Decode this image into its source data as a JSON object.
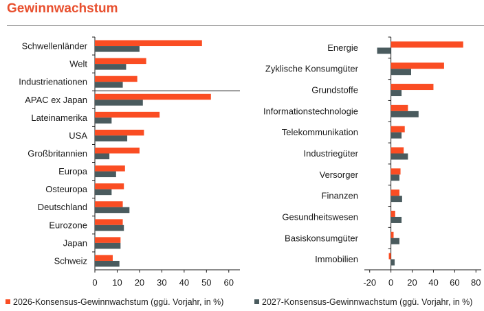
{
  "title": "Gewinnwachstum",
  "colors": {
    "series2026": "#fa4d23",
    "series2027": "#4a5b5e",
    "title": "#e8502f",
    "axis": "#1a1a1a"
  },
  "legend": {
    "series2026": "2026-Konsensus-Gewinnwachstum (ggü. Vorjahr, in %)",
    "series2027": "2027-Konsensus-Gewinnwachstum (ggü. Vorjahr, in %)"
  },
  "chart_data": [
    {
      "type": "bar",
      "orientation": "horizontal",
      "categories": [
        "Schwellenländer",
        "Welt",
        "Industrienationen",
        "APAC ex Japan",
        "Lateinamerika",
        "USA",
        "Großbritannien",
        "Europa",
        "Osteuropa",
        "Deutschland",
        "Eurozone",
        "Japan",
        "Schweiz"
      ],
      "series": [
        {
          "name": "2026-Konsensus-Gewinnwachstum (ggü. Vorjahr, in %)",
          "values": [
            48,
            23,
            19,
            52,
            29,
            22,
            20,
            13.5,
            13,
            12.5,
            12.5,
            11.5,
            8
          ]
        },
        {
          "name": "2027-Konsensus-Gewinnwachstum (ggü. Vorjahr, in %)",
          "values": [
            20,
            14,
            12.5,
            21.5,
            7.5,
            14.5,
            6.5,
            9.5,
            7.5,
            15.5,
            13,
            11.5,
            11
          ]
        }
      ],
      "xlim": [
        0,
        65
      ],
      "xticks": [
        0,
        10,
        20,
        30,
        40,
        50,
        60
      ],
      "separator_after_index": 2
    },
    {
      "type": "bar",
      "orientation": "horizontal",
      "categories": [
        "Energie",
        "Zyklische Konsumgüter",
        "Grundstoffe",
        "Informationstechnologie",
        "Telekommunikation",
        "Industriegüter",
        "Versorger",
        "Finanzen",
        "Gesundheitswesen",
        "Basiskonsumgüter",
        "Immobilien"
      ],
      "series": [
        {
          "name": "2026-Konsensus-Gewinnwachstum (ggü. Vorjahr, in %)",
          "values": [
            68,
            50,
            40,
            16,
            13,
            12,
            9,
            8,
            4,
            2.5,
            -2
          ]
        },
        {
          "name": "2027-Konsensus-Gewinnwachstum (ggü. Vorjahr, in %)",
          "values": [
            -13,
            19,
            10,
            26,
            10,
            16,
            8,
            10.5,
            10,
            8,
            3.5
          ]
        }
      ],
      "xlim": [
        -25,
        85
      ],
      "xticks": [
        -20,
        0,
        20,
        40,
        60,
        80
      ]
    }
  ]
}
